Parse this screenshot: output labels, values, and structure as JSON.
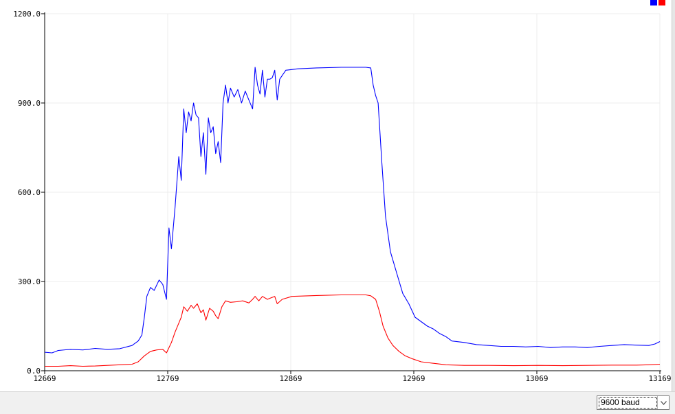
{
  "window": {
    "title": ""
  },
  "legend": {
    "colors": [
      "#0000ff",
      "#ff0000"
    ]
  },
  "footer": {
    "baud_select": {
      "value": "9600 baud",
      "icon": "chevron-down-icon"
    }
  },
  "chart_data": {
    "type": "line",
    "title": "",
    "xlabel": "",
    "ylabel": "",
    "xlim": [
      12669,
      13169
    ],
    "ylim": [
      0,
      1200
    ],
    "grid": true,
    "x_ticks": [
      12669,
      12769,
      12869,
      12969,
      13069,
      13169
    ],
    "x_tick_labels": [
      "12669",
      "12769",
      "12869",
      "12969",
      "13069",
      "13169"
    ],
    "y_ticks": [
      0,
      300,
      600,
      900,
      1200
    ],
    "y_tick_labels": [
      "0.0",
      "300.0",
      "600.0",
      "900.0",
      "1200.0"
    ],
    "series": [
      {
        "color": "#0000ff",
        "points": [
          [
            12669,
            62
          ],
          [
            12675,
            60
          ],
          [
            12680,
            68
          ],
          [
            12690,
            72
          ],
          [
            12700,
            70
          ],
          [
            12710,
            75
          ],
          [
            12720,
            72
          ],
          [
            12730,
            74
          ],
          [
            12740,
            85
          ],
          [
            12745,
            100
          ],
          [
            12748,
            120
          ],
          [
            12750,
            180
          ],
          [
            12752,
            250
          ],
          [
            12755,
            280
          ],
          [
            12758,
            270
          ],
          [
            12762,
            305
          ],
          [
            12765,
            290
          ],
          [
            12768,
            240
          ],
          [
            12770,
            480
          ],
          [
            12772,
            410
          ],
          [
            12775,
            550
          ],
          [
            12778,
            720
          ],
          [
            12780,
            640
          ],
          [
            12782,
            880
          ],
          [
            12784,
            800
          ],
          [
            12786,
            870
          ],
          [
            12788,
            840
          ],
          [
            12790,
            900
          ],
          [
            12792,
            860
          ],
          [
            12794,
            850
          ],
          [
            12796,
            720
          ],
          [
            12798,
            800
          ],
          [
            12800,
            660
          ],
          [
            12802,
            850
          ],
          [
            12804,
            800
          ],
          [
            12806,
            820
          ],
          [
            12808,
            730
          ],
          [
            12810,
            770
          ],
          [
            12812,
            700
          ],
          [
            12814,
            900
          ],
          [
            12816,
            960
          ],
          [
            12818,
            900
          ],
          [
            12820,
            950
          ],
          [
            12823,
            920
          ],
          [
            12826,
            945
          ],
          [
            12829,
            900
          ],
          [
            12832,
            940
          ],
          [
            12835,
            910
          ],
          [
            12838,
            880
          ],
          [
            12840,
            1020
          ],
          [
            12842,
            960
          ],
          [
            12844,
            930
          ],
          [
            12846,
            1010
          ],
          [
            12848,
            920
          ],
          [
            12850,
            980
          ],
          [
            12852,
            980
          ],
          [
            12854,
            985
          ],
          [
            12856,
            1010
          ],
          [
            12858,
            910
          ],
          [
            12860,
            980
          ],
          [
            12865,
            1010
          ],
          [
            12875,
            1015
          ],
          [
            12890,
            1018
          ],
          [
            12910,
            1020
          ],
          [
            12930,
            1020
          ],
          [
            12934,
            1018
          ],
          [
            12936,
            960
          ],
          [
            12938,
            925
          ],
          [
            12940,
            900
          ],
          [
            12943,
            700
          ],
          [
            12946,
            520
          ],
          [
            12950,
            400
          ],
          [
            12955,
            330
          ],
          [
            12960,
            260
          ],
          [
            12965,
            225
          ],
          [
            12970,
            180
          ],
          [
            12975,
            165
          ],
          [
            12980,
            150
          ],
          [
            12985,
            140
          ],
          [
            12990,
            125
          ],
          [
            12995,
            115
          ],
          [
            13000,
            100
          ],
          [
            13010,
            95
          ],
          [
            13020,
            88
          ],
          [
            13030,
            85
          ],
          [
            13040,
            82
          ],
          [
            13050,
            82
          ],
          [
            13060,
            80
          ],
          [
            13070,
            82
          ],
          [
            13080,
            78
          ],
          [
            13090,
            80
          ],
          [
            13100,
            80
          ],
          [
            13110,
            78
          ],
          [
            13120,
            82
          ],
          [
            13130,
            85
          ],
          [
            13140,
            88
          ],
          [
            13150,
            86
          ],
          [
            13160,
            85
          ],
          [
            13165,
            90
          ],
          [
            13169,
            98
          ]
        ]
      },
      {
        "color": "#ff0000",
        "points": [
          [
            12669,
            15
          ],
          [
            12680,
            15
          ],
          [
            12690,
            17
          ],
          [
            12700,
            15
          ],
          [
            12710,
            16
          ],
          [
            12720,
            18
          ],
          [
            12730,
            20
          ],
          [
            12740,
            22
          ],
          [
            12745,
            30
          ],
          [
            12750,
            50
          ],
          [
            12755,
            65
          ],
          [
            12760,
            70
          ],
          [
            12765,
            72
          ],
          [
            12768,
            60
          ],
          [
            12772,
            95
          ],
          [
            12775,
            130
          ],
          [
            12778,
            160
          ],
          [
            12780,
            180
          ],
          [
            12782,
            215
          ],
          [
            12785,
            200
          ],
          [
            12788,
            220
          ],
          [
            12790,
            210
          ],
          [
            12793,
            225
          ],
          [
            12796,
            195
          ],
          [
            12798,
            205
          ],
          [
            12800,
            170
          ],
          [
            12803,
            210
          ],
          [
            12806,
            200
          ],
          [
            12808,
            185
          ],
          [
            12810,
            175
          ],
          [
            12813,
            215
          ],
          [
            12816,
            235
          ],
          [
            12820,
            230
          ],
          [
            12825,
            232
          ],
          [
            12830,
            235
          ],
          [
            12835,
            228
          ],
          [
            12838,
            240
          ],
          [
            12840,
            250
          ],
          [
            12843,
            235
          ],
          [
            12846,
            250
          ],
          [
            12850,
            240
          ],
          [
            12853,
            245
          ],
          [
            12856,
            250
          ],
          [
            12858,
            225
          ],
          [
            12862,
            240
          ],
          [
            12870,
            250
          ],
          [
            12890,
            253
          ],
          [
            12910,
            255
          ],
          [
            12930,
            255
          ],
          [
            12934,
            252
          ],
          [
            12938,
            240
          ],
          [
            12941,
            200
          ],
          [
            12944,
            150
          ],
          [
            12948,
            110
          ],
          [
            12952,
            85
          ],
          [
            12957,
            65
          ],
          [
            12962,
            50
          ],
          [
            12968,
            40
          ],
          [
            12975,
            30
          ],
          [
            12985,
            25
          ],
          [
            12995,
            20
          ],
          [
            13010,
            18
          ],
          [
            13030,
            18
          ],
          [
            13050,
            17
          ],
          [
            13070,
            18
          ],
          [
            13090,
            17
          ],
          [
            13110,
            18
          ],
          [
            13130,
            19
          ],
          [
            13150,
            19
          ],
          [
            13160,
            20
          ],
          [
            13169,
            22
          ]
        ]
      }
    ]
  }
}
